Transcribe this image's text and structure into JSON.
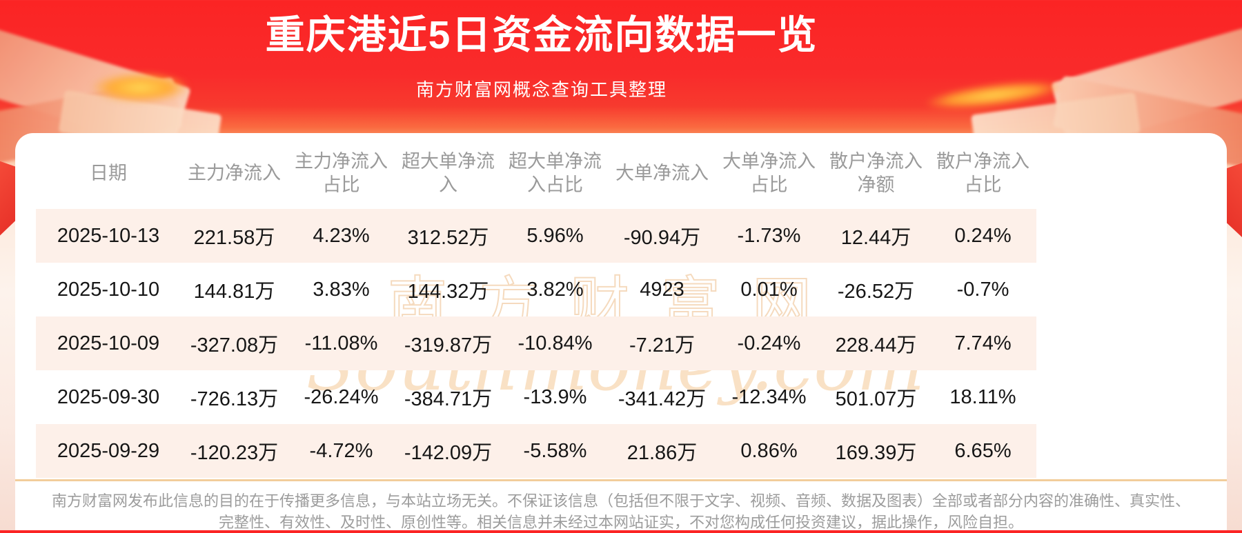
{
  "header": {
    "title": "重庆港近5日资金流向数据一览",
    "subtitle": "南方财富网概念查询工具整理"
  },
  "watermark": {
    "cn": "南方财富网",
    "en": "Southmoney.com"
  },
  "table": {
    "columns": [
      "日期",
      "主力净流入",
      "主力净流入占比",
      "超大单净流入",
      "超大单净流入占比",
      "大单净流入",
      "大单净流入占比",
      "散户净流入净额",
      "散户净流入占比"
    ],
    "rows": [
      [
        "2025-10-13",
        "221.58万",
        "4.23%",
        "312.52万",
        "5.96%",
        "-90.94万",
        "-1.73%",
        "12.44万",
        "0.24%"
      ],
      [
        "2025-10-10",
        "144.81万",
        "3.83%",
        "144.32万",
        "3.82%",
        "4923",
        "0.01%",
        "-26.52万",
        "-0.7%"
      ],
      [
        "2025-10-09",
        "-327.08万",
        "-11.08%",
        "-319.87万",
        "-10.84%",
        "-7.21万",
        "-0.24%",
        "228.44万",
        "7.74%"
      ],
      [
        "2025-09-30",
        "-726.13万",
        "-26.24%",
        "-384.71万",
        "-13.9%",
        "-341.42万",
        "-12.34%",
        "501.07万",
        "18.11%"
      ],
      [
        "2025-09-29",
        "-120.23万",
        "-4.72%",
        "-142.09万",
        "-5.58%",
        "21.86万",
        "0.86%",
        "169.39万",
        "6.65%"
      ]
    ]
  },
  "footer": {
    "line1": "南方财富网发布此信息的目的在于传播更多信息，与本站立场无关。不保证该信息（包括但不限于文字、视频、音频、数据及图表）全部或者部分内容的准确性、真实性、",
    "line2": "完整性、有效性、及时性、原创性等。相关信息并未经过本网站证实，不对您构成任何投资建议，据此操作，风险自担。"
  },
  "colors": {
    "background_red": "#f92b2b",
    "card": "#ffffff",
    "row_alt": "#fdf0e9",
    "divider": "#f2cd9a",
    "header_text": "#9a9a9a",
    "cell_text": "#161616",
    "footer_text": "#9c9c9c",
    "watermark": "#f3d2ae",
    "gold": "#ffab35"
  },
  "chart_data": {
    "type": "table",
    "title": "重庆港近5日资金流向数据一览",
    "columns": [
      "日期",
      "主力净流入",
      "主力净流入占比",
      "超大单净流入",
      "超大单净流入占比",
      "大单净流入",
      "大单净流入占比",
      "散户净流入净额",
      "散户净流入占比"
    ],
    "rows": [
      [
        "2025-10-13",
        "221.58万",
        "4.23%",
        "312.52万",
        "5.96%",
        "-90.94万",
        "-1.73%",
        "12.44万",
        "0.24%"
      ],
      [
        "2025-10-10",
        "144.81万",
        "3.83%",
        "144.32万",
        "3.82%",
        "4923",
        "0.01%",
        "-26.52万",
        "-0.7%"
      ],
      [
        "2025-10-09",
        "-327.08万",
        "-11.08%",
        "-319.87万",
        "-10.84%",
        "-7.21万",
        "-0.24%",
        "228.44万",
        "7.74%"
      ],
      [
        "2025-09-30",
        "-726.13万",
        "-26.24%",
        "-384.71万",
        "-13.9%",
        "-341.42万",
        "-12.34%",
        "501.07万",
        "18.11%"
      ],
      [
        "2025-09-29",
        "-120.23万",
        "-4.72%",
        "-142.09万",
        "-5.58%",
        "21.86万",
        "0.86%",
        "169.39万",
        "6.65%"
      ]
    ]
  }
}
